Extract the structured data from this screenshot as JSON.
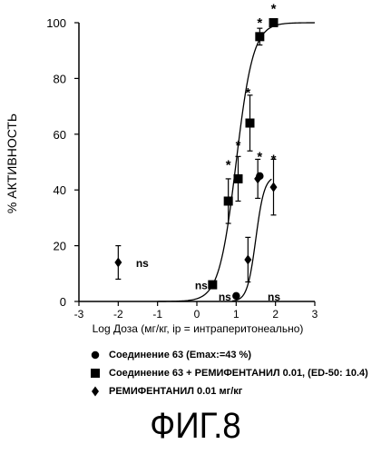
{
  "figure_label": "ФИГ.8",
  "chart_data": {
    "type": "scatter",
    "xlabel": "Log Доза (мг/кг, ip = интраперитонеально)",
    "ylabel": "% АКТИВНОСТЬ",
    "xlim": [
      -3,
      3
    ],
    "ylim": [
      0,
      100
    ],
    "x_ticks": [
      "-3",
      "-2",
      "-1",
      "0",
      "1",
      "2",
      "3"
    ],
    "y_ticks": [
      "0",
      "20",
      "40",
      "60",
      "80",
      "100"
    ],
    "series": [
      {
        "name": "Соединение 63 (Emax:=43 %)",
        "marker": "circle",
        "points": [
          {
            "x": 1.0,
            "y": 2,
            "err": 0
          },
          {
            "x": 1.6,
            "y": 45,
            "err": 0
          }
        ]
      },
      {
        "name": "Соединение 63 + РЕМИФЕНТАНИЛ 0.01, (ED-50: 10.4)",
        "marker": "square",
        "points": [
          {
            "x": 0.4,
            "y": 6,
            "err": 0
          },
          {
            "x": 0.8,
            "y": 36,
            "err": 8
          },
          {
            "x": 1.05,
            "y": 44,
            "err": 8
          },
          {
            "x": 1.35,
            "y": 64,
            "err": 10
          },
          {
            "x": 1.6,
            "y": 95,
            "err": 3
          },
          {
            "x": 1.95,
            "y": 100,
            "err": 0
          }
        ],
        "fit_curve": {
          "ec50_log": 1.0,
          "hill": 2.0,
          "bottom": 0,
          "top": 100,
          "x_range": [
            -1,
            3
          ]
        }
      },
      {
        "name": "РЕМИФЕНТАНИЛ 0.01 мг/кг",
        "marker": "diamond",
        "points": [
          {
            "x": -2.0,
            "y": 14,
            "err": 6
          },
          {
            "x": 1.3,
            "y": 15,
            "err": 8
          },
          {
            "x": 1.55,
            "y": 44,
            "err": 7
          },
          {
            "x": 1.95,
            "y": 41,
            "err": 10
          }
        ],
        "fit_curve": {
          "ec50_log": 1.5,
          "hill": 4.0,
          "bottom": 0,
          "top": 45,
          "x_range": [
            0.9,
            1.9
          ]
        }
      }
    ],
    "annotations": [
      {
        "text": "*",
        "x": 0.8,
        "y": 49
      },
      {
        "text": "*",
        "x": 1.05,
        "y": 56
      },
      {
        "text": "*",
        "x": 1.3,
        "y": 75
      },
      {
        "text": "*",
        "x": 1.6,
        "y": 100
      },
      {
        "text": "*",
        "x": 1.95,
        "y": 105
      },
      {
        "text": "*",
        "x": 1.6,
        "y": 52
      },
      {
        "text": "*",
        "x": 1.95,
        "y": 51
      },
      {
        "text": "ns",
        "x": -1.55,
        "y": 14
      },
      {
        "text": "ns",
        "x": -0.05,
        "y": 6
      },
      {
        "text": "ns",
        "x": 0.55,
        "y": 2
      },
      {
        "text": "ns",
        "x": 1.8,
        "y": 2
      }
    ]
  },
  "legend": [
    {
      "marker": "circle",
      "label": "Соединение 63 (Emax:=43 %)"
    },
    {
      "marker": "square",
      "label": "Соединение 63 + РЕМИФЕНТАНИЛ 0.01, (ED-50: 10.4)"
    },
    {
      "marker": "diamond",
      "label": "РЕМИФЕНТАНИЛ 0.01 мг/кг"
    }
  ]
}
